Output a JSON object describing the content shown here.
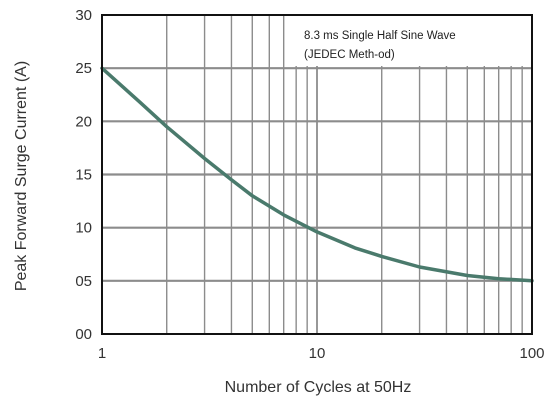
{
  "chart_data": {
    "type": "line",
    "title": "",
    "xlabel": "Number of Cycles at 50Hz",
    "ylabel": "Peak Forward Surge Current (A)",
    "x_scale": "log",
    "xlim": [
      1,
      100
    ],
    "ylim": [
      0,
      30
    ],
    "x_ticks": [
      "1",
      "10",
      "100"
    ],
    "y_ticks": [
      "00",
      "05",
      "10",
      "15",
      "20",
      "25",
      "30"
    ],
    "grid": true,
    "annotation": [
      "8.3 ms Single Half Sine Wave",
      "(JEDEC Meth-od)"
    ],
    "series": [
      {
        "x": [
          1,
          1.5,
          2,
          3,
          4,
          5,
          7,
          10,
          15,
          20,
          30,
          50,
          70,
          100
        ],
        "y": [
          25,
          21.8,
          19.5,
          16.5,
          14.5,
          13.0,
          11.2,
          9.6,
          8.1,
          7.3,
          6.3,
          5.5,
          5.2,
          5.0
        ]
      }
    ],
    "colors": {
      "line": "#4a7a6c",
      "grid": "#8c8c8c",
      "axis": "#111111"
    }
  }
}
